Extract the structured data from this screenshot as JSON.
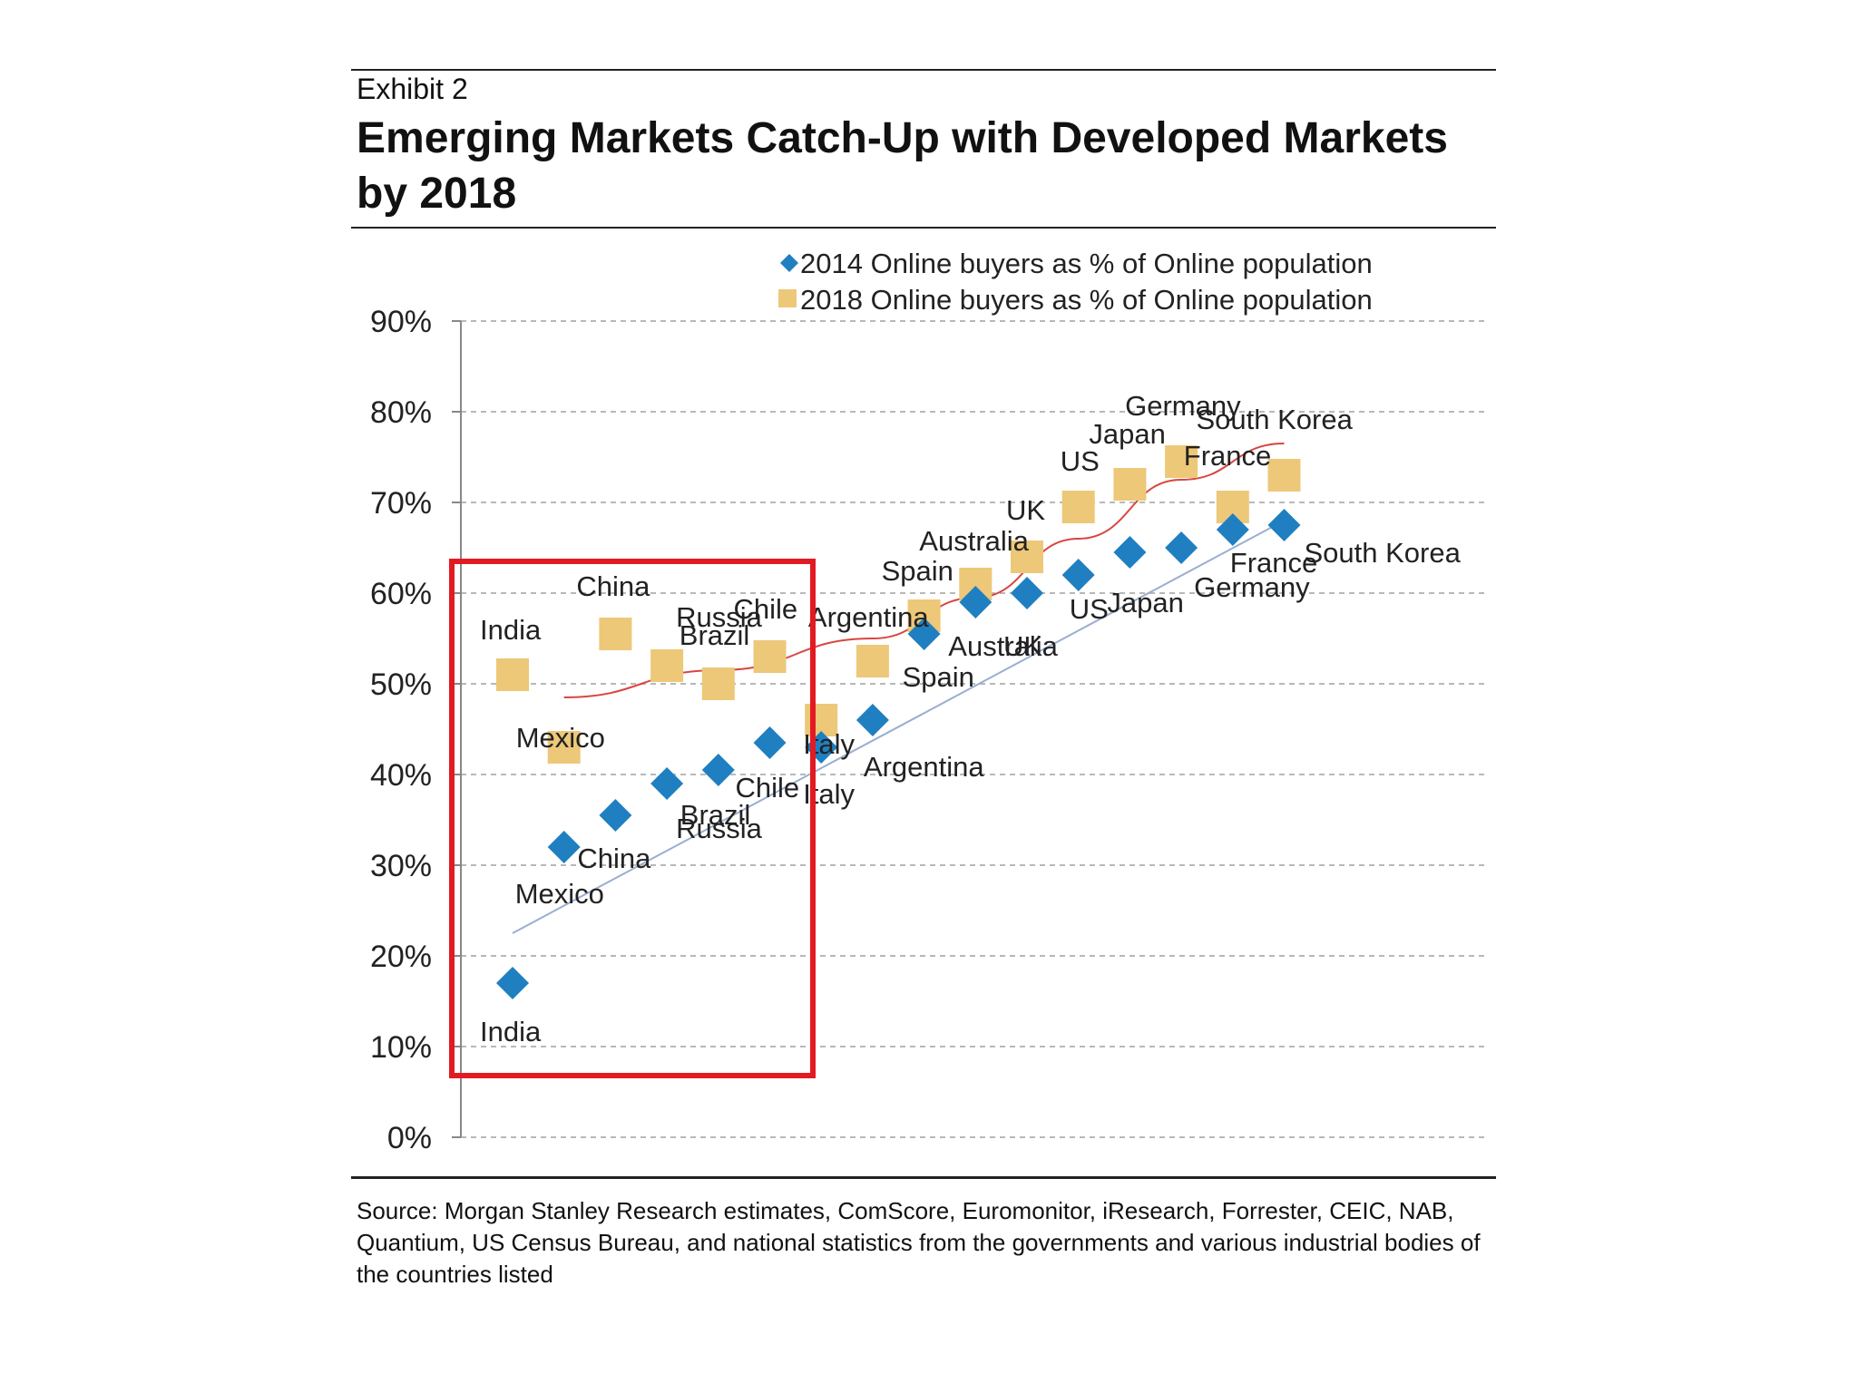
{
  "header": {
    "exhibit": "Exhibit 2",
    "title": "Emerging Markets Catch-Up with Developed Markets by 2018"
  },
  "source": "Source: Morgan Stanley Research estimates, ComScore, Euromonitor, iResearch, Forrester, CEIC, NAB, Quantium, US Census Bureau, and national statistics from the governments and various industrial bodies of the countries listed",
  "colors": {
    "s2014": "#1f7fc1",
    "s2018": "#ecc878",
    "trend2014": "#9aaed0",
    "trend2018": "#d9453f",
    "highlight": "#e21b22",
    "grid": "#b8b8b8"
  },
  "chart_data": {
    "type": "scatter",
    "title": "Emerging Markets Catch-Up with Developed Markets by 2018",
    "xlabel": "",
    "ylabel": "",
    "ylim": [
      0,
      90
    ],
    "y_ticks": [
      "0%",
      "10%",
      "20%",
      "30%",
      "40%",
      "50%",
      "60%",
      "70%",
      "80%",
      "90%"
    ],
    "grid": "horizontal dashed",
    "legend_position": "top-right",
    "categories": [
      "India",
      "Mexico",
      "China",
      "Russia",
      "Brazil",
      "Chile",
      "Italy",
      "Argentina",
      "Spain",
      "Australia",
      "UK",
      "US",
      "Japan",
      "Germany",
      "France",
      "South Korea"
    ],
    "series": [
      {
        "name": "2014 Online buyers as % of Online population",
        "marker": "diamond",
        "values": [
          17,
          32,
          35.5,
          39,
          40.5,
          43.5,
          43,
          46,
          55.5,
          59,
          60,
          62,
          64.5,
          65,
          67,
          67.5
        ],
        "labels": [
          "India",
          "Mexico",
          "China",
          "Russia",
          "Brazil",
          "Chile",
          "Italy",
          "Argentina",
          "Spain",
          "Australia",
          "UK",
          "US",
          "Japan",
          "Germany",
          "France",
          "South Korea"
        ]
      },
      {
        "name": "2018 Online buyers as % of Online population",
        "marker": "square",
        "values": [
          51,
          43,
          55.5,
          52,
          50,
          53,
          46,
          52.5,
          57.5,
          61,
          64,
          69.5,
          72,
          74.5,
          69.5,
          73
        ],
        "labels": [
          "India",
          "Mexico",
          "China",
          "Russia",
          "Brazil",
          "Chile",
          "Italy",
          "Argentina",
          "Spain",
          "Australia",
          "UK",
          "US",
          "Japan",
          "Germany",
          "France",
          "South Korea"
        ]
      }
    ],
    "trendlines": [
      {
        "series": "2014",
        "from": [
          0,
          22.5
        ],
        "to": [
          15,
          68
        ]
      },
      {
        "series": "2018",
        "curve": [
          [
            1,
            48.5
          ],
          [
            4,
            51.5
          ],
          [
            7,
            55
          ],
          [
            9,
            59.5
          ],
          [
            11,
            66
          ],
          [
            13,
            72.5
          ],
          [
            15,
            76.5
          ]
        ]
      }
    ],
    "annotation": "red rectangle highlighting India, Mexico, China, Russia, Brazil and Chile"
  }
}
